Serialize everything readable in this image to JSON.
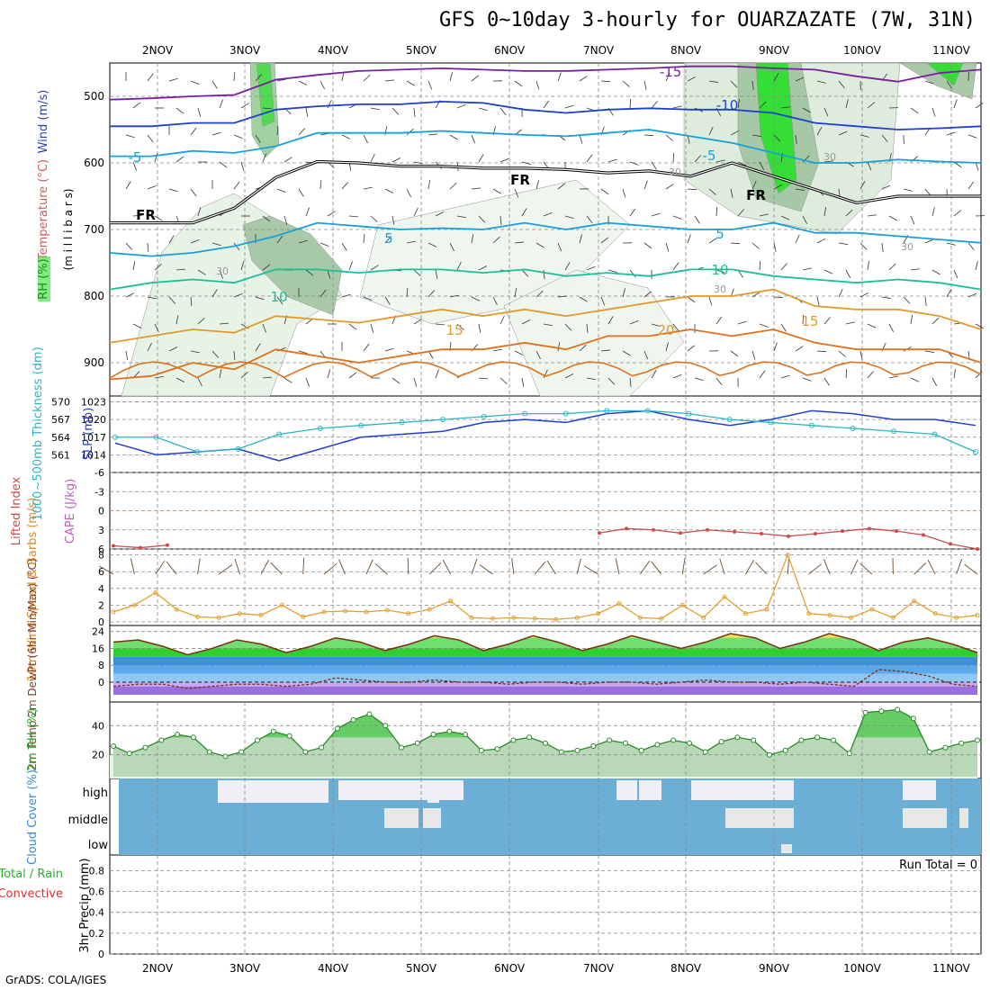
{
  "title": "GFS 0~10day 3-hourly for OUARZAZATE (7W, 31N)",
  "credit": "GrADS: COLA/IGES",
  "colors": {
    "temp_cold": "#7b1fa2",
    "temp_blue": "#1f3fd0",
    "temp_cyan": "#1aa0d8",
    "temp_teal": "#1abf9a",
    "temp_orange": "#e29a2a",
    "temp_dark_orange": "#e0701a",
    "temp_magenta": "#d0157a",
    "rh_green": "#2ee02e",
    "slp": "#1f3fd0",
    "thickness": "#2ab6c6",
    "cape": "#d04a4a",
    "wind": "#e6a030",
    "cloud": "#6baed6"
  },
  "chart_data": [
    {
      "panel": "cross-section",
      "type": "heatmap",
      "ylabel_parts": [
        "Wind (m/s)",
        "Temperature (°C)",
        "RH (%)"
      ],
      "yaxis_label": "(m i l l i b a r s)",
      "y_ticks": [
        "500",
        "600",
        "700",
        "800",
        "900"
      ],
      "x_ticks": [
        "2NOV",
        "3NOV",
        "4NOV",
        "5NOV",
        "6NOV",
        "7NOV",
        "8NOV",
        "9NOV",
        "10NOV",
        "11NOV"
      ],
      "contour_labels": [
        "-15",
        "-10",
        "-5",
        "-5",
        "FR",
        "FR",
        "FR",
        "5",
        "5",
        "10",
        "10",
        "15",
        "20",
        "15",
        "30",
        "30",
        "30",
        "30",
        "30"
      ],
      "isotherms": [
        {
          "name": "-15",
          "values": [
            505,
            503,
            500,
            498,
            475,
            468,
            462,
            460,
            458,
            460,
            462,
            462,
            460,
            458,
            455,
            455,
            458,
            460,
            470,
            478,
            465,
            460
          ]
        },
        {
          "name": "-10",
          "values": [
            545,
            545,
            540,
            540,
            520,
            515,
            512,
            512,
            508,
            510,
            520,
            525,
            520,
            518,
            520,
            520,
            525,
            540,
            545,
            550,
            548,
            545
          ]
        },
        {
          "name": "-5",
          "values": [
            590,
            590,
            582,
            585,
            575,
            555,
            555,
            555,
            552,
            555,
            558,
            560,
            555,
            550,
            560,
            570,
            585,
            600,
            600,
            595,
            598,
            600
          ]
        },
        {
          "name": "5",
          "values": [
            735,
            740,
            735,
            725,
            710,
            690,
            695,
            700,
            698,
            700,
            690,
            700,
            690,
            695,
            700,
            700,
            690,
            705,
            705,
            710,
            715,
            720
          ]
        },
        {
          "name": "10",
          "values": [
            790,
            780,
            775,
            780,
            760,
            760,
            765,
            760,
            760,
            765,
            760,
            770,
            765,
            770,
            760,
            760,
            770,
            775,
            780,
            775,
            780,
            790
          ]
        },
        {
          "name": "15",
          "values": [
            870,
            860,
            850,
            855,
            830,
            835,
            840,
            830,
            820,
            830,
            820,
            830,
            820,
            810,
            800,
            800,
            790,
            815,
            820,
            820,
            830,
            850
          ]
        },
        {
          "name": "20",
          "values": [
            925,
            920,
            900,
            910,
            880,
            890,
            900,
            890,
            880,
            880,
            870,
            880,
            860,
            860,
            850,
            860,
            850,
            870,
            880,
            880,
            880,
            900
          ]
        }
      ],
      "freezing_level": [
        690,
        690,
        690,
        668,
        622,
        598,
        600,
        605,
        605,
        608,
        608,
        610,
        615,
        612,
        620,
        600,
        620,
        640,
        660,
        650,
        650,
        650
      ]
    },
    {
      "panel": "slp-thickness",
      "type": "line",
      "ylabel": "SLP (mb)",
      "ylabel2": "1000~500mb Thickness (dm)",
      "y_ticks": [
        "1014",
        "1017",
        "1020",
        "1023"
      ],
      "y2_ticks": [
        "561",
        "564",
        "567",
        "570"
      ],
      "series": [
        {
          "name": "SLP",
          "values": [
            1016,
            1014,
            1014.5,
            1015,
            1013,
            1015,
            1017,
            1017.5,
            1018,
            1019.5,
            1020,
            1019.5,
            1021,
            1021.5,
            1020,
            1019,
            1020,
            1021.5,
            1021,
            1020,
            1020,
            1019
          ]
        },
        {
          "name": "Thickness",
          "values": [
            564,
            564,
            561.5,
            562,
            564.5,
            565.5,
            566,
            566.5,
            567,
            567.5,
            568,
            568,
            568.5,
            568.5,
            568,
            567,
            566.5,
            566,
            565.5,
            565,
            564.5,
            561.5
          ]
        }
      ]
    },
    {
      "panel": "cape-li",
      "type": "line",
      "ylabel": "Lifted Index",
      "ylabel2": "CAPE (J/kg)",
      "y_ticks": [
        "-6",
        "-3",
        "0",
        "3",
        "6"
      ],
      "series": [
        {
          "name": "Lifted Index",
          "values": [
            5.5,
            5.8,
            5.4,
            null,
            null,
            null,
            null,
            null,
            null,
            null,
            null,
            null,
            null,
            null,
            null,
            null,
            null,
            null,
            3.5,
            2.8,
            3,
            3.5,
            3,
            3.3,
            3.6,
            4,
            3.6,
            3.2,
            2.8,
            3.2,
            3.8,
            5.2,
            6
          ]
        }
      ]
    },
    {
      "panel": "wind10m",
      "type": "line",
      "ylabel": "10m Wind Speed & Barbs (m/s)",
      "y_ticks": [
        "0",
        "2",
        "4",
        "6",
        "8"
      ],
      "series": [
        {
          "name": "Speed",
          "values": [
            1.2,
            2,
            3.5,
            1.5,
            0.6,
            0.5,
            1,
            0.8,
            2,
            0.6,
            1.2,
            1.3,
            1.2,
            1.4,
            1,
            1.5,
            2.5,
            0.5,
            0.4,
            0.5,
            0.4,
            0.3,
            0.5,
            1,
            2.2,
            0.5,
            0.4,
            2,
            0.5,
            3,
            1,
            1.5,
            8,
            1,
            0.8,
            0.5,
            1.5,
            0.5,
            2.5,
            1,
            0.5,
            0.8
          ]
        }
      ]
    },
    {
      "panel": "temp2m",
      "type": "area",
      "ylabel": "2m Temp 2m DewPt (6hr Min/Max) (°C)",
      "y_ticks": [
        "0",
        "8",
        "16",
        "24"
      ],
      "series": [
        {
          "name": "2m Temp",
          "values": [
            19,
            20,
            17,
            13,
            16,
            20,
            18,
            14,
            17,
            21,
            19,
            15,
            18,
            22,
            20,
            15,
            18,
            22,
            19,
            15,
            18,
            22,
            19,
            16,
            19,
            23,
            21,
            16,
            19,
            23,
            20,
            15,
            19,
            21,
            18,
            14
          ]
        },
        {
          "name": "2m DewPt",
          "values": [
            -2,
            -1,
            -1,
            -3,
            -2,
            -1,
            -1,
            -2,
            -1,
            2,
            1,
            0,
            0,
            1,
            0,
            0,
            -1,
            0,
            0,
            -1,
            0,
            0,
            -1,
            0,
            1,
            0,
            0,
            -1,
            0,
            -1,
            -2,
            6,
            5,
            3,
            -1,
            -2
          ]
        }
      ]
    },
    {
      "panel": "rh2m",
      "type": "area",
      "ylabel": "2m RH (%)",
      "y_ticks": [
        "20",
        "40"
      ],
      "series": [
        {
          "name": "2m RH",
          "values": [
            26,
            21,
            25,
            30,
            34,
            32,
            22,
            19,
            22,
            30,
            36,
            33,
            22,
            25,
            38,
            44,
            48,
            40,
            25,
            28,
            34,
            36,
            34,
            23,
            24,
            30,
            32,
            28,
            22,
            23,
            26,
            30,
            28,
            23,
            27,
            30,
            28,
            22,
            29,
            32,
            30,
            20,
            23,
            30,
            32,
            30,
            21,
            49,
            50,
            51,
            45,
            22,
            25,
            28,
            30
          ]
        }
      ]
    },
    {
      "panel": "cloud",
      "type": "heatmap",
      "ylabel": "Cloud Cover (%)",
      "rows": [
        "high",
        "middle",
        "low"
      ]
    },
    {
      "panel": "precip",
      "type": "bar",
      "ylabel": "3hr Precip (mm)",
      "ylabel2": "Total / Rain",
      "ylabel3": "Convective",
      "y_ticks": [
        "0",
        "0.2",
        "0.4",
        "0.6",
        "0.8"
      ],
      "run_total": "Run Total = 0",
      "x_ticks": [
        "2NOV",
        "3NOV",
        "4NOV",
        "5NOV",
        "6NOV",
        "7NOV",
        "8NOV",
        "9NOV",
        "10NOV",
        "11NOV"
      ]
    }
  ]
}
